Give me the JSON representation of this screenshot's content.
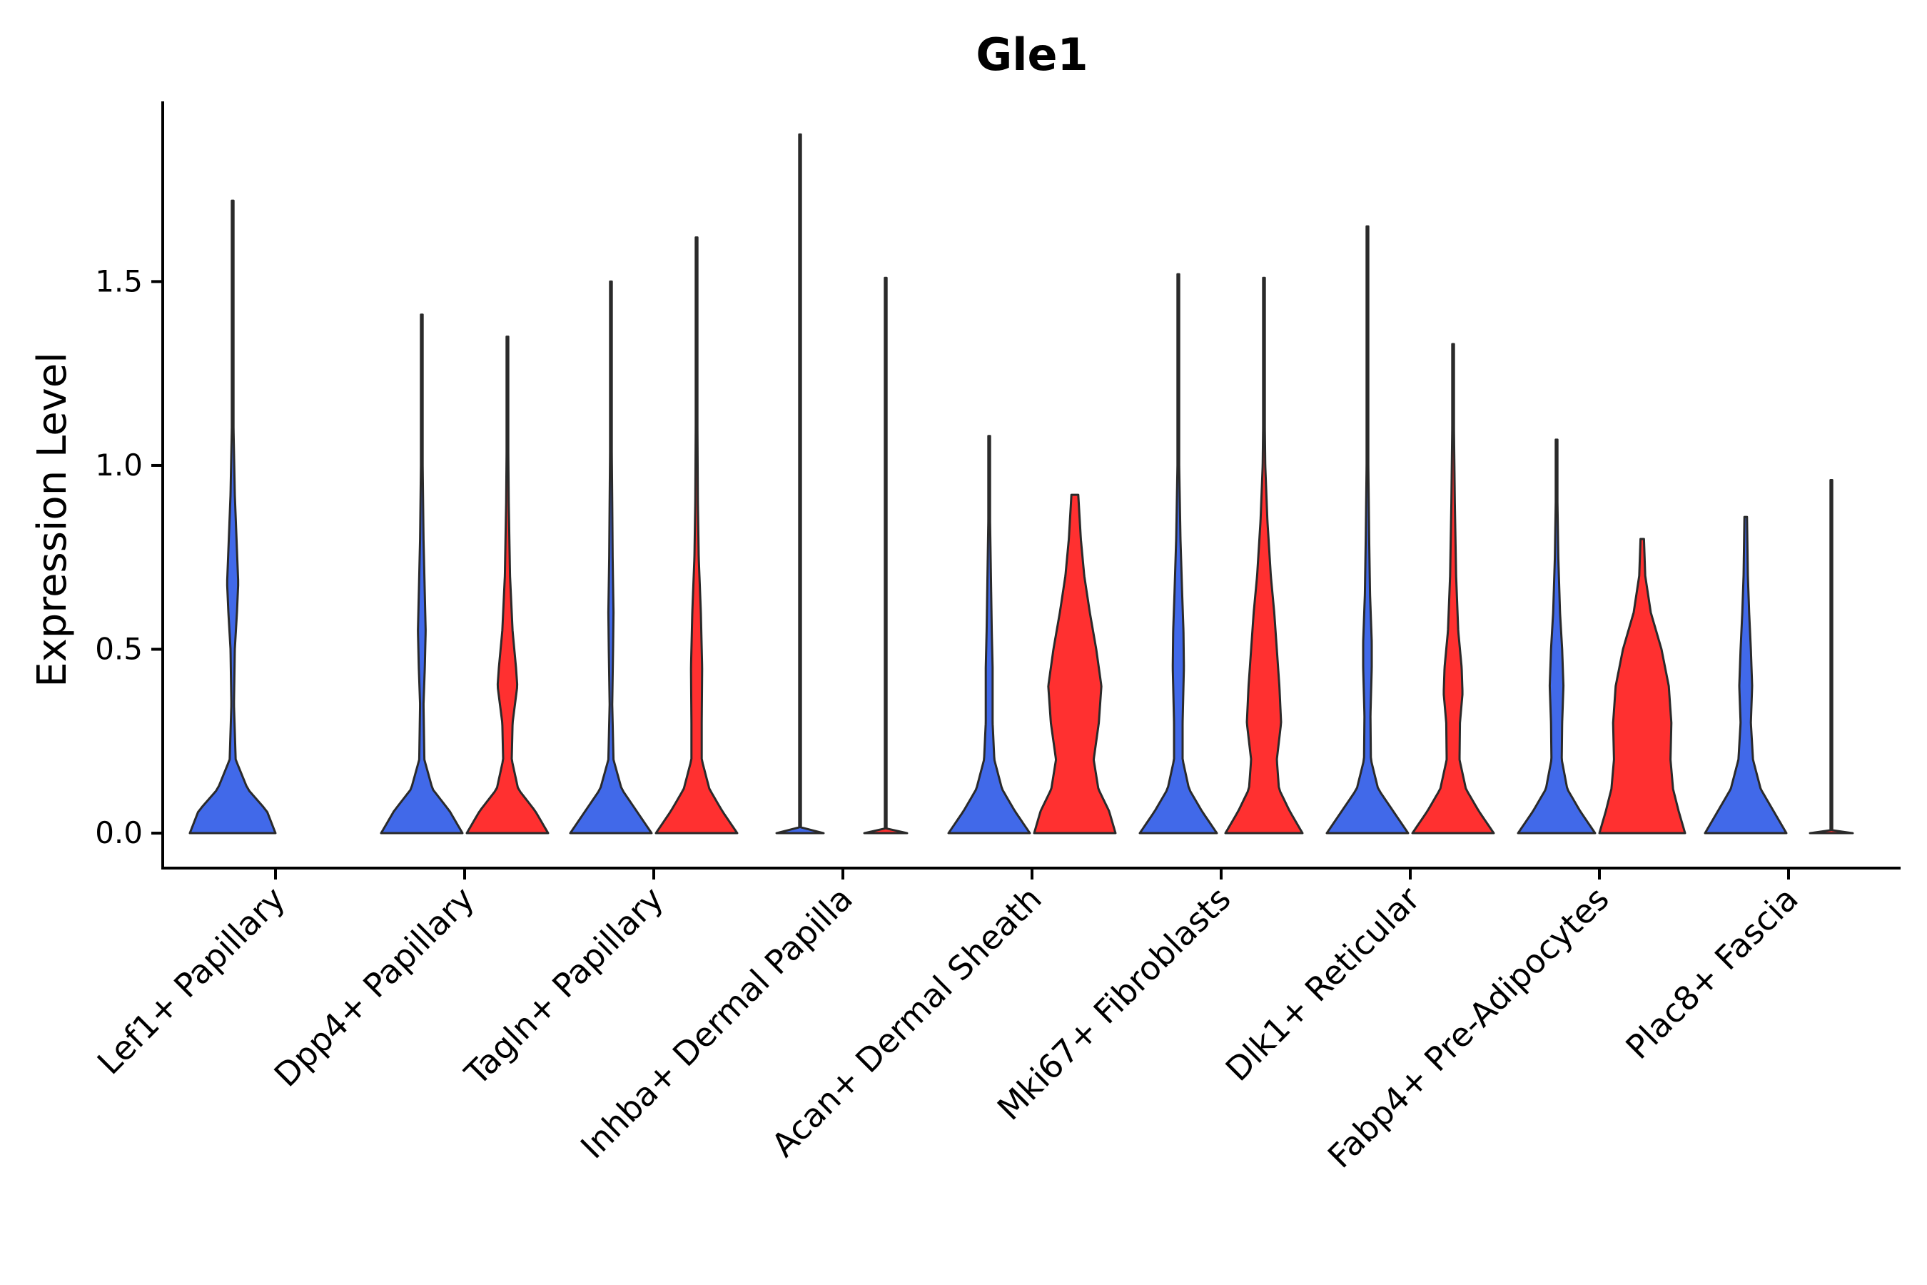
{
  "chart_data": {
    "type": "violin",
    "title": "Gle1",
    "xlabel": "",
    "ylabel": "Expression Level",
    "ylim": [
      -0.095,
      1.99
    ],
    "yticks": [
      0.0,
      0.5,
      1.0,
      1.5
    ],
    "ytick_labels": [
      "0.0",
      "0.5",
      "1.0",
      "1.5"
    ],
    "categories": [
      "Lef1+ Papillary",
      "Dpp4+ Papillary",
      "Tagln+ Papillary",
      "Inhba+ Dermal Papilla",
      "Acan+ Dermal Sheath",
      "Mki67+ Fibroblasts",
      "Dlk1+ Reticular",
      "Fabp4+ Pre-Adipocytes",
      "Plac8+ Fascia"
    ],
    "series": [
      {
        "name": "blue",
        "color": "#4169E9",
        "violins": [
          {
            "max": 1.72,
            "profile": [
              [
                0,
                1.0
              ],
              [
                0.06,
                0.8
              ],
              [
                0.12,
                0.35
              ],
              [
                0.2,
                0.07
              ],
              [
                0.35,
                0.03
              ],
              [
                0.5,
                0.05
              ],
              [
                0.6,
                0.1
              ],
              [
                0.68,
                0.13
              ],
              [
                0.8,
                0.09
              ],
              [
                0.92,
                0.05
              ],
              [
                1.1,
                0.02
              ],
              [
                1.3,
                0.01
              ],
              [
                1.72,
                0.0
              ]
            ]
          },
          {
            "max": 1.41,
            "profile": [
              [
                0,
                0.95
              ],
              [
                0.06,
                0.65
              ],
              [
                0.12,
                0.25
              ],
              [
                0.2,
                0.06
              ],
              [
                0.35,
                0.04
              ],
              [
                0.45,
                0.07
              ],
              [
                0.55,
                0.09
              ],
              [
                0.65,
                0.07
              ],
              [
                0.8,
                0.04
              ],
              [
                1.0,
                0.02
              ],
              [
                1.2,
                0.01
              ],
              [
                1.41,
                0.0
              ]
            ]
          },
          {
            "max": 1.5,
            "profile": [
              [
                0,
                0.95
              ],
              [
                0.06,
                0.6
              ],
              [
                0.12,
                0.25
              ],
              [
                0.2,
                0.06
              ],
              [
                0.35,
                0.03
              ],
              [
                0.5,
                0.05
              ],
              [
                0.6,
                0.06
              ],
              [
                0.75,
                0.04
              ],
              [
                0.9,
                0.03
              ],
              [
                1.1,
                0.015
              ],
              [
                1.3,
                0.008
              ],
              [
                1.5,
                0.0
              ]
            ]
          },
          {
            "max": 1.9,
            "profile": [
              [
                0,
                0.55
              ],
              [
                0.005,
                0.02
              ],
              [
                0.1,
                0.01
              ],
              [
                1.9,
                0.0
              ]
            ]
          },
          {
            "max": 1.08,
            "profile": [
              [
                0,
                0.95
              ],
              [
                0.06,
                0.6
              ],
              [
                0.12,
                0.3
              ],
              [
                0.2,
                0.12
              ],
              [
                0.3,
                0.08
              ],
              [
                0.45,
                0.08
              ],
              [
                0.55,
                0.06
              ],
              [
                0.7,
                0.04
              ],
              [
                0.85,
                0.02
              ],
              [
                1.08,
                0.0
              ]
            ]
          },
          {
            "max": 1.52,
            "profile": [
              [
                0,
                0.9
              ],
              [
                0.06,
                0.55
              ],
              [
                0.12,
                0.25
              ],
              [
                0.2,
                0.1
              ],
              [
                0.3,
                0.1
              ],
              [
                0.45,
                0.13
              ],
              [
                0.55,
                0.12
              ],
              [
                0.65,
                0.09
              ],
              [
                0.8,
                0.05
              ],
              [
                1.0,
                0.02
              ],
              [
                1.2,
                0.01
              ],
              [
                1.52,
                0.0
              ]
            ]
          },
          {
            "max": 1.65,
            "profile": [
              [
                0,
                0.95
              ],
              [
                0.06,
                0.6
              ],
              [
                0.12,
                0.25
              ],
              [
                0.2,
                0.08
              ],
              [
                0.32,
                0.07
              ],
              [
                0.45,
                0.1
              ],
              [
                0.52,
                0.1
              ],
              [
                0.65,
                0.06
              ],
              [
                0.8,
                0.04
              ],
              [
                1.0,
                0.02
              ],
              [
                1.3,
                0.01
              ],
              [
                1.65,
                0.0
              ]
            ]
          },
          {
            "max": 1.07,
            "profile": [
              [
                0,
                0.9
              ],
              [
                0.06,
                0.55
              ],
              [
                0.12,
                0.25
              ],
              [
                0.2,
                0.12
              ],
              [
                0.3,
                0.13
              ],
              [
                0.4,
                0.16
              ],
              [
                0.5,
                0.13
              ],
              [
                0.6,
                0.08
              ],
              [
                0.75,
                0.04
              ],
              [
                0.9,
                0.02
              ],
              [
                1.07,
                0.0
              ]
            ]
          },
          {
            "max": 0.86,
            "profile": [
              [
                0,
                0.95
              ],
              [
                0.06,
                0.65
              ],
              [
                0.12,
                0.35
              ],
              [
                0.2,
                0.17
              ],
              [
                0.3,
                0.12
              ],
              [
                0.4,
                0.15
              ],
              [
                0.5,
                0.12
              ],
              [
                0.6,
                0.08
              ],
              [
                0.7,
                0.05
              ],
              [
                0.86,
                0.03
              ]
            ]
          }
        ]
      },
      {
        "name": "red",
        "color": "#FF3030",
        "violins": [
          null,
          {
            "max": 1.35,
            "profile": [
              [
                0,
                0.95
              ],
              [
                0.06,
                0.65
              ],
              [
                0.12,
                0.25
              ],
              [
                0.2,
                0.1
              ],
              [
                0.3,
                0.12
              ],
              [
                0.4,
                0.23
              ],
              [
                0.45,
                0.2
              ],
              [
                0.55,
                0.12
              ],
              [
                0.7,
                0.06
              ],
              [
                0.9,
                0.03
              ],
              [
                1.1,
                0.015
              ],
              [
                1.35,
                0.0
              ]
            ]
          },
          {
            "max": 1.62,
            "profile": [
              [
                0,
                0.95
              ],
              [
                0.06,
                0.6
              ],
              [
                0.12,
                0.3
              ],
              [
                0.2,
                0.12
              ],
              [
                0.3,
                0.12
              ],
              [
                0.45,
                0.13
              ],
              [
                0.6,
                0.1
              ],
              [
                0.75,
                0.05
              ],
              [
                0.9,
                0.03
              ],
              [
                1.1,
                0.02
              ],
              [
                1.3,
                0.01
              ],
              [
                1.62,
                0.0
              ]
            ]
          },
          {
            "max": 1.51,
            "profile": [
              [
                0,
                0.5
              ],
              [
                0.005,
                0.02
              ],
              [
                0.1,
                0.01
              ],
              [
                1.51,
                0.0
              ]
            ]
          },
          {
            "max": 0.92,
            "profile": [
              [
                0,
                0.95
              ],
              [
                0.06,
                0.8
              ],
              [
                0.12,
                0.55
              ],
              [
                0.2,
                0.44
              ],
              [
                0.3,
                0.56
              ],
              [
                0.4,
                0.62
              ],
              [
                0.5,
                0.5
              ],
              [
                0.6,
                0.35
              ],
              [
                0.7,
                0.22
              ],
              [
                0.8,
                0.14
              ],
              [
                0.92,
                0.08
              ]
            ]
          },
          {
            "max": 1.51,
            "profile": [
              [
                0,
                0.9
              ],
              [
                0.06,
                0.6
              ],
              [
                0.12,
                0.35
              ],
              [
                0.2,
                0.3
              ],
              [
                0.3,
                0.4
              ],
              [
                0.4,
                0.36
              ],
              [
                0.5,
                0.3
              ],
              [
                0.6,
                0.24
              ],
              [
                0.7,
                0.16
              ],
              [
                0.85,
                0.08
              ],
              [
                1.0,
                0.03
              ],
              [
                1.2,
                0.01
              ],
              [
                1.51,
                0.0
              ]
            ]
          },
          {
            "max": 1.33,
            "profile": [
              [
                0,
                0.95
              ],
              [
                0.06,
                0.6
              ],
              [
                0.12,
                0.3
              ],
              [
                0.2,
                0.15
              ],
              [
                0.3,
                0.16
              ],
              [
                0.38,
                0.22
              ],
              [
                0.45,
                0.2
              ],
              [
                0.55,
                0.12
              ],
              [
                0.7,
                0.07
              ],
              [
                0.9,
                0.04
              ],
              [
                1.1,
                0.02
              ],
              [
                1.33,
                0.0
              ]
            ]
          },
          {
            "max": 0.8,
            "profile": [
              [
                0,
                1.0
              ],
              [
                0.06,
                0.85
              ],
              [
                0.12,
                0.72
              ],
              [
                0.2,
                0.66
              ],
              [
                0.3,
                0.68
              ],
              [
                0.4,
                0.62
              ],
              [
                0.5,
                0.45
              ],
              [
                0.6,
                0.2
              ],
              [
                0.7,
                0.07
              ],
              [
                0.8,
                0.04
              ]
            ]
          },
          {
            "max": 0.96,
            "profile": [
              [
                0,
                0.5
              ],
              [
                0.005,
                0.02
              ],
              [
                0.1,
                0.01
              ],
              [
                0.96,
                0.0
              ]
            ]
          }
        ]
      }
    ]
  }
}
